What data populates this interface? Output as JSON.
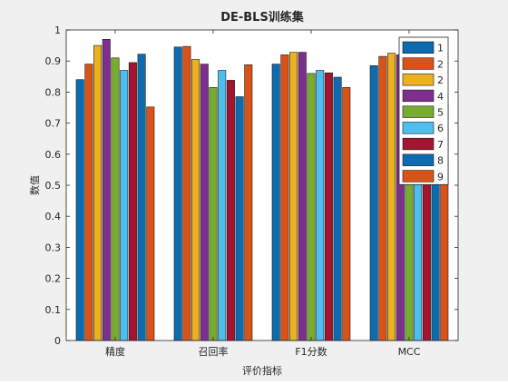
{
  "chart_data": {
    "type": "bar",
    "title": "DE-BLS训练集",
    "xlabel": "评价指标",
    "ylabel": "数值",
    "categories": [
      "精度",
      "召回率",
      "F1分数",
      "MCC"
    ],
    "ylim": [
      0,
      1
    ],
    "yticks": [
      "0",
      "0.1",
      "0.2",
      "0.3",
      "0.4",
      "0.5",
      "0.6",
      "0.7",
      "0.8",
      "0.9",
      "1"
    ],
    "grid": false,
    "legend_position": "top-right",
    "series": [
      {
        "name": "1",
        "color": "#0e6bb0",
        "values": [
          0.84,
          0.945,
          0.89,
          0.885
        ]
      },
      {
        "name": "2",
        "color": "#d95319",
        "values": [
          0.89,
          0.947,
          0.92,
          0.915
        ]
      },
      {
        "name": "2",
        "color": "#edb120",
        "values": [
          0.95,
          0.905,
          0.928,
          0.925
        ]
      },
      {
        "name": "4",
        "color": "#7e2f8e",
        "values": [
          0.97,
          0.89,
          0.928,
          0.92
        ]
      },
      {
        "name": "5",
        "color": "#77ac30",
        "values": [
          0.91,
          0.815,
          0.86,
          0.87
        ]
      },
      {
        "name": "6",
        "color": "#4dbeee",
        "values": [
          0.87,
          0.87,
          0.87,
          0.875
        ]
      },
      {
        "name": "7",
        "color": "#a2142f",
        "values": [
          0.895,
          0.838,
          0.862,
          0.86
        ]
      },
      {
        "name": "8",
        "color": "#0e6bb0",
        "values": [
          0.922,
          0.785,
          0.848,
          0.84
        ]
      },
      {
        "name": "9",
        "color": "#d95319",
        "values": [
          0.752,
          0.888,
          0.815,
          0.765
        ]
      }
    ]
  }
}
